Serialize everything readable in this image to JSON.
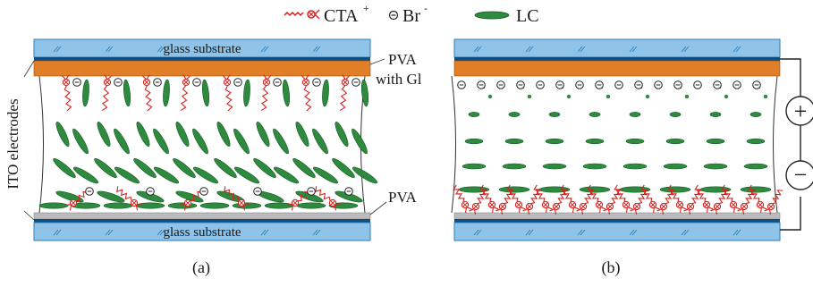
{
  "legend": {
    "cta": "CTA",
    "cta_sup": "+",
    "br": "Br",
    "br_sup": "-",
    "lc": "LC"
  },
  "panel_a": {
    "top_substrate": "glass substrate",
    "bottom_substrate": "glass substrate",
    "pva_top_line1": "PVA",
    "pva_top_line2": "with Gl",
    "pva_bottom": "PVA",
    "side_label": "ITO electrodes",
    "caption": "(a)"
  },
  "panel_b": {
    "caption": "(b)"
  },
  "battery": {
    "positive": "+",
    "negative": "−"
  },
  "colors": {
    "glass": "#8fc4e8",
    "glass_edge": "#2f7fb8",
    "ito_stripe": "#0c4f86",
    "pva_gl": "#e07f28",
    "pva_gray": "#bcbcbc",
    "lc": "#2e8b3e",
    "lc_edge": "#14562a",
    "cta": "#d6221f",
    "ion_edge": "#222222"
  }
}
